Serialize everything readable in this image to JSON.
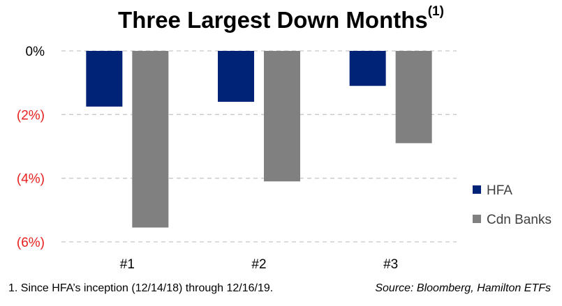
{
  "title": {
    "main": "Three Largest Down Months",
    "note_marker": "(1)"
  },
  "chart_data": {
    "type": "bar",
    "categories": [
      "#1",
      "#2",
      "#3"
    ],
    "series": [
      {
        "name": "HFA",
        "color": "#002378",
        "values": [
          -1.75,
          -1.6,
          -1.1
        ]
      },
      {
        "name": "Cdn Banks",
        "color": "#808080",
        "values": [
          -5.55,
          -4.1,
          -2.9
        ]
      }
    ],
    "ylim": [
      -6,
      0
    ],
    "yticks": [
      {
        "value": 0,
        "label": "0%",
        "color": "#000000"
      },
      {
        "value": -2,
        "label": "(2%)",
        "color": "#e8201f"
      },
      {
        "value": -4,
        "label": "(4%)",
        "color": "#e8201f"
      },
      {
        "value": -6,
        "label": "(6%)",
        "color": "#e8201f"
      }
    ],
    "grid": true,
    "legend_position": "right"
  },
  "footnote": "1. Since HFA’s inception (12/14/18) through 12/16/19.",
  "source": "Source: Bloomberg, Hamilton ETFs"
}
